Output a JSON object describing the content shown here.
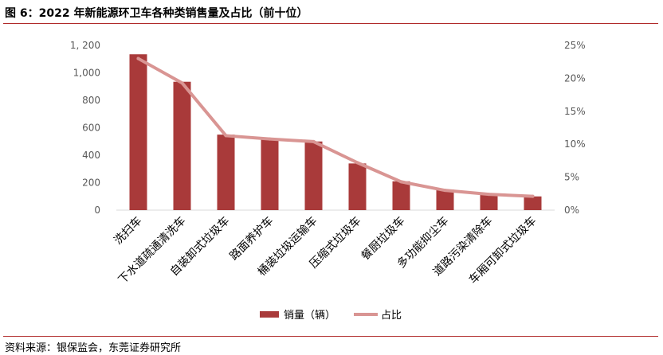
{
  "figure": {
    "title": "图 6：2022 年新能源环卫车各种类销售量及占比（前十位）",
    "source": "资料来源：银保监会，东莞证券研究所"
  },
  "chart_data": {
    "type": "bar",
    "categories": [
      "洗扫车",
      "下水道疏通清洗车",
      "自装卸式垃圾车",
      "路面养护车",
      "桶装垃圾运输车",
      "压缩式垃圾车",
      "餐厨垃圾车",
      "多功能抑尘车",
      "道路污染清除车",
      "车厢可卸式垃圾车"
    ],
    "series": [
      {
        "name": "销量（辆）",
        "type": "bar",
        "axis": "left",
        "color": "#a93a3a",
        "values": [
          1135,
          935,
          550,
          520,
          500,
          340,
          210,
          150,
          115,
          100
        ]
      },
      {
        "name": "占比",
        "type": "line",
        "axis": "right",
        "unit": "%",
        "color": "#d99593",
        "values": [
          23.0,
          19.3,
          11.3,
          10.8,
          10.4,
          7.2,
          4.3,
          3.0,
          2.4,
          2.1
        ]
      }
    ],
    "y_left": {
      "min": 0,
      "max": 1200,
      "ticks": [
        "0",
        "200",
        "400",
        "600",
        "800",
        "1,000",
        "1, 200"
      ],
      "tick_values": [
        0,
        200,
        400,
        600,
        800,
        1000,
        1200
      ]
    },
    "y_right": {
      "min": 0,
      "max": 25,
      "ticks": [
        "0%",
        "5%",
        "10%",
        "15%",
        "20%",
        "25%"
      ],
      "tick_values": [
        0,
        5,
        10,
        15,
        20,
        25
      ]
    },
    "grid": false,
    "legend_position": "bottom"
  }
}
